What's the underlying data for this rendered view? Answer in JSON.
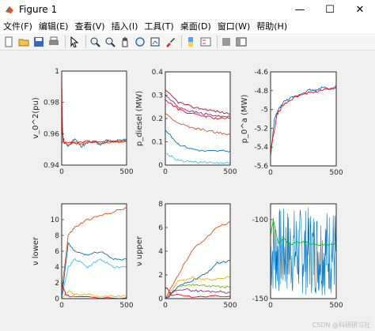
{
  "window": {
    "title": "Figure 1",
    "min_glyph": "—",
    "max_glyph": "☐",
    "close_glyph": "✕"
  },
  "menu": [
    "文件(F)",
    "编辑(E)",
    "查看(V)",
    "插入(I)",
    "工具(T)",
    "桌面(D)",
    "窗口(W)",
    "帮助(H)"
  ],
  "toolbar_icons": [
    "new-file-icon",
    "open-file-icon",
    "save-icon",
    "print-icon",
    "pointer-icon",
    "zoom-in-icon",
    "zoom-out-icon",
    "pan-icon",
    "rotate-3d-icon",
    "data-cursor-icon",
    "brush-icon",
    "colorbar-icon",
    "legend-icon",
    "hide-plot-tools-icon",
    "show-plot-tools-icon"
  ],
  "watermark": "CSDN @科研研习社",
  "chart_data": [
    {
      "type": "line",
      "ylabel": "v_0^2(pu)",
      "xlim": [
        0,
        500
      ],
      "ylim": [
        0.94,
        1.0
      ],
      "xticks": [
        "0",
        "500"
      ],
      "yticks": [
        "0.94",
        "0.96",
        "0.98",
        "1"
      ],
      "series_colors": [
        "#0072bd",
        "#d95319",
        "#ff0000"
      ],
      "series": [
        {
          "values": [
            [
              0,
              0.98
            ],
            [
              10,
              0.955
            ],
            [
              50,
              0.952
            ],
            [
              100,
              0.957
            ],
            [
              150,
              0.952
            ],
            [
              200,
              0.954
            ],
            [
              250,
              0.955
            ],
            [
              300,
              0.953
            ],
            [
              350,
              0.956
            ],
            [
              400,
              0.955
            ],
            [
              450,
              0.956
            ],
            [
              500,
              0.956
            ]
          ]
        },
        {
          "values": [
            [
              0,
              0.955
            ],
            [
              50,
              0.953
            ],
            [
              100,
              0.955
            ],
            [
              150,
              0.953
            ],
            [
              200,
              0.955
            ],
            [
              300,
              0.954
            ],
            [
              400,
              0.955
            ],
            [
              500,
              0.955
            ]
          ]
        },
        {
          "values": [
            [
              0,
              0.998
            ],
            [
              5,
              0.96
            ],
            [
              20,
              0.954
            ],
            [
              100,
              0.954
            ],
            [
              200,
              0.955
            ],
            [
              300,
              0.955
            ],
            [
              400,
              0.955
            ],
            [
              500,
              0.955
            ]
          ]
        }
      ]
    },
    {
      "type": "line",
      "ylabel": "p_diesel (MW)",
      "xlim": [
        0,
        500
      ],
      "ylim": [
        0,
        0.4
      ],
      "xticks": [
        "0",
        "500"
      ],
      "yticks": [
        "0",
        "0.1",
        "0.2",
        "0.3",
        "0.4"
      ],
      "series_colors": [
        "#a2142f",
        "#7e2f8e",
        "#d95319",
        "#0072bd",
        "#4dbeee",
        "#ff0000"
      ],
      "series": [
        {
          "values": [
            [
              0,
              0.32
            ],
            [
              100,
              0.27
            ],
            [
              200,
              0.25
            ],
            [
              300,
              0.24
            ],
            [
              400,
              0.23
            ],
            [
              500,
              0.22
            ]
          ]
        },
        {
          "values": [
            [
              0,
              0.3
            ],
            [
              100,
              0.25
            ],
            [
              200,
              0.23
            ],
            [
              300,
              0.22
            ],
            [
              400,
              0.21
            ],
            [
              500,
              0.21
            ]
          ]
        },
        {
          "values": [
            [
              0,
              0.22
            ],
            [
              100,
              0.18
            ],
            [
              200,
              0.16
            ],
            [
              300,
              0.15
            ],
            [
              400,
              0.14
            ],
            [
              500,
              0.13
            ]
          ]
        },
        {
          "values": [
            [
              0,
              0.15
            ],
            [
              100,
              0.09
            ],
            [
              200,
              0.07
            ],
            [
              300,
              0.06
            ],
            [
              400,
              0.06
            ],
            [
              500,
              0.06
            ]
          ]
        },
        {
          "values": [
            [
              0,
              0.05
            ],
            [
              100,
              0.02
            ],
            [
              200,
              0.015
            ],
            [
              300,
              0.01
            ],
            [
              400,
              0.01
            ],
            [
              500,
              0.01
            ]
          ]
        },
        {
          "values": [
            [
              0,
              0.28
            ],
            [
              100,
              0.24
            ],
            [
              200,
              0.22
            ],
            [
              300,
              0.21
            ],
            [
              400,
              0.2
            ],
            [
              500,
              0.2
            ]
          ]
        }
      ]
    },
    {
      "type": "line",
      "ylabel": "p_0^a (MW)",
      "xlim": [
        0,
        500
      ],
      "ylim": [
        -5.6,
        -4.6
      ],
      "xticks": [
        "0",
        "500"
      ],
      "yticks": [
        "-5.6",
        "-5.4",
        "-5.2",
        "-5",
        "-4.8",
        "-4.6"
      ],
      "series_colors": [
        "#0072bd",
        "#ff0000"
      ],
      "series": [
        {
          "values": [
            [
              0,
              -5.5
            ],
            [
              30,
              -5.1
            ],
            [
              60,
              -5.0
            ],
            [
              100,
              -4.92
            ],
            [
              150,
              -4.88
            ],
            [
              200,
              -4.86
            ],
            [
              250,
              -4.82
            ],
            [
              300,
              -4.79
            ],
            [
              350,
              -4.8
            ],
            [
              400,
              -4.76
            ],
            [
              450,
              -4.78
            ],
            [
              500,
              -4.76
            ]
          ]
        },
        {
          "values": [
            [
              0,
              -5.45
            ],
            [
              50,
              -5.05
            ],
            [
              100,
              -4.95
            ],
            [
              150,
              -4.9
            ],
            [
              200,
              -4.86
            ],
            [
              300,
              -4.82
            ],
            [
              400,
              -4.79
            ],
            [
              500,
              -4.77
            ]
          ]
        }
      ]
    },
    {
      "type": "line",
      "ylabel": "ν lower",
      "xlim": [
        0,
        500
      ],
      "ylim": [
        0,
        12
      ],
      "xticks": [
        "0",
        "500"
      ],
      "yticks": [
        "0",
        "2",
        "4",
        "6",
        "8",
        "10"
      ],
      "series_colors": [
        "#d95319",
        "#0072bd",
        "#4dbeee",
        "#edb120",
        "#ff0000"
      ],
      "series": [
        {
          "values": [
            [
              0,
              1
            ],
            [
              50,
              8
            ],
            [
              100,
              9
            ],
            [
              200,
              10
            ],
            [
              300,
              10.5
            ],
            [
              400,
              11
            ],
            [
              500,
              11.5
            ]
          ]
        },
        {
          "values": [
            [
              0,
              0
            ],
            [
              50,
              7
            ],
            [
              100,
              6
            ],
            [
              200,
              5.5
            ],
            [
              300,
              6
            ],
            [
              400,
              5
            ],
            [
              500,
              5
            ]
          ]
        },
        {
          "values": [
            [
              0,
              0
            ],
            [
              50,
              4
            ],
            [
              100,
              5
            ],
            [
              200,
              4
            ],
            [
              300,
              5
            ],
            [
              400,
              4
            ],
            [
              500,
              4
            ]
          ]
        },
        {
          "values": [
            [
              0,
              0
            ],
            [
              50,
              1
            ],
            [
              100,
              0.5
            ],
            [
              200,
              0.5
            ],
            [
              300,
              0.3
            ],
            [
              400,
              0.3
            ],
            [
              500,
              0.3
            ]
          ]
        },
        {
          "values": [
            [
              0,
              2
            ],
            [
              30,
              0.5
            ],
            [
              100,
              0.2
            ],
            [
              500,
              0.1
            ]
          ]
        }
      ]
    },
    {
      "type": "line",
      "ylabel": "ν upper",
      "xlim": [
        0,
        500
      ],
      "ylim": [
        0,
        8
      ],
      "xticks": [
        "0",
        "500"
      ],
      "yticks": [
        "0",
        "2",
        "4",
        "6",
        "8"
      ],
      "series_colors": [
        "#d95319",
        "#0072bd",
        "#edb120",
        "#77ac30",
        "#7e2f8e",
        "#ff0000"
      ],
      "series": [
        {
          "values": [
            [
              0,
              0
            ],
            [
              100,
              2
            ],
            [
              200,
              4
            ],
            [
              300,
              5
            ],
            [
              400,
              6
            ],
            [
              500,
              6.5
            ]
          ]
        },
        {
          "values": [
            [
              0,
              0
            ],
            [
              100,
              1
            ],
            [
              200,
              1.5
            ],
            [
              300,
              2
            ],
            [
              400,
              3
            ],
            [
              500,
              3.2
            ]
          ]
        },
        {
          "values": [
            [
              0,
              0
            ],
            [
              100,
              1.5
            ],
            [
              200,
              1.8
            ],
            [
              300,
              1.6
            ],
            [
              400,
              1.7
            ],
            [
              500,
              1.9
            ]
          ]
        },
        {
          "values": [
            [
              0,
              0
            ],
            [
              100,
              1
            ],
            [
              200,
              1.2
            ],
            [
              300,
              1.1
            ],
            [
              400,
              1.0
            ],
            [
              500,
              1.0
            ]
          ]
        },
        {
          "values": [
            [
              0,
              0
            ],
            [
              100,
              0.8
            ],
            [
              200,
              0.7
            ],
            [
              300,
              0.6
            ],
            [
              400,
              0.6
            ],
            [
              500,
              0.5
            ]
          ]
        },
        {
          "values": [
            [
              0,
              1
            ],
            [
              50,
              0.3
            ],
            [
              200,
              0.2
            ],
            [
              500,
              0.2
            ]
          ]
        }
      ]
    },
    {
      "type": "line",
      "xlim": [
        0,
        500
      ],
      "ylim": [
        -150,
        -90
      ],
      "xticks": [
        "0",
        "500"
      ],
      "yticks": [
        "-150",
        "-100"
      ],
      "series_colors": [
        "#0072bd",
        "#00cc00"
      ],
      "series": [
        {
          "noisy": true,
          "center": -120,
          "amplitude": 28
        },
        {
          "values": [
            [
              0,
              -110
            ],
            [
              20,
              -100
            ],
            [
              60,
              -115
            ],
            [
              100,
              -112
            ],
            [
              150,
              -116
            ],
            [
              200,
              -114
            ],
            [
              300,
              -115
            ],
            [
              400,
              -116
            ],
            [
              500,
              -115
            ]
          ]
        }
      ]
    }
  ]
}
